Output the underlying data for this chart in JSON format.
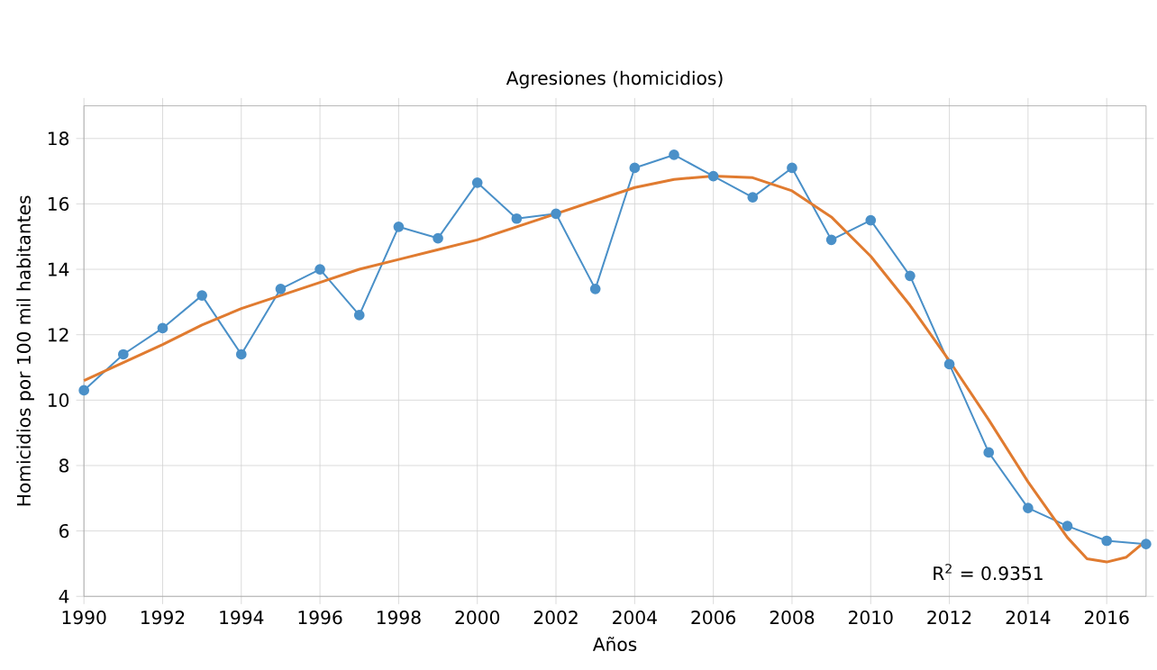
{
  "chart_data": {
    "type": "line",
    "title": "Agresiones (homicidios)",
    "xlabel": "Años",
    "ylabel": "Homicidios por 100 mil habitantes",
    "xlim": [
      1990,
      2017
    ],
    "xticks": [
      1990,
      1992,
      1994,
      1996,
      1998,
      2000,
      2002,
      2004,
      2006,
      2008,
      2010,
      2012,
      2014,
      2016
    ],
    "ylim": [
      4,
      19
    ],
    "yticks": [
      4,
      6,
      8,
      10,
      12,
      14,
      16,
      18
    ],
    "grid": true,
    "series": [
      {
        "color": "#4a90c8",
        "marker": "circle",
        "x": [
          1990,
          1991,
          1992,
          1993,
          1994,
          1995,
          1996,
          1997,
          1998,
          1999,
          2000,
          2001,
          2002,
          2003,
          2004,
          2005,
          2006,
          2007,
          2008,
          2009,
          2010,
          2011,
          2012,
          2013,
          2014,
          2015,
          2016,
          2017
        ],
        "values": [
          10.3,
          11.4,
          12.2,
          13.2,
          11.4,
          13.4,
          14.0,
          12.6,
          15.3,
          14.95,
          16.65,
          15.55,
          15.7,
          13.4,
          17.1,
          17.5,
          16.85,
          16.2,
          17.1,
          14.9,
          15.5,
          13.8,
          11.1,
          8.4,
          6.7,
          6.15,
          5.7,
          5.6
        ]
      },
      {
        "color": "#e07b30",
        "marker": "none",
        "x": [
          1990,
          1991,
          1992,
          1993,
          1994,
          1995,
          1996,
          1997,
          1998,
          1999,
          2000,
          2001,
          2002,
          2003,
          2004,
          2005,
          2006,
          2007,
          2008,
          2009,
          2010,
          2011,
          2012,
          2013,
          2014,
          2015,
          2015.5,
          2016,
          2016.5,
          2017
        ],
        "values": [
          10.6,
          11.15,
          11.7,
          12.3,
          12.8,
          13.2,
          13.6,
          14.0,
          14.3,
          14.6,
          14.9,
          15.3,
          15.7,
          16.1,
          16.5,
          16.75,
          16.85,
          16.8,
          16.4,
          15.6,
          14.4,
          12.9,
          11.2,
          9.4,
          7.5,
          5.8,
          5.15,
          5.05,
          5.2,
          5.7
        ]
      }
    ],
    "annotations": [
      "R$^{2}$ = 0.9351"
    ]
  }
}
